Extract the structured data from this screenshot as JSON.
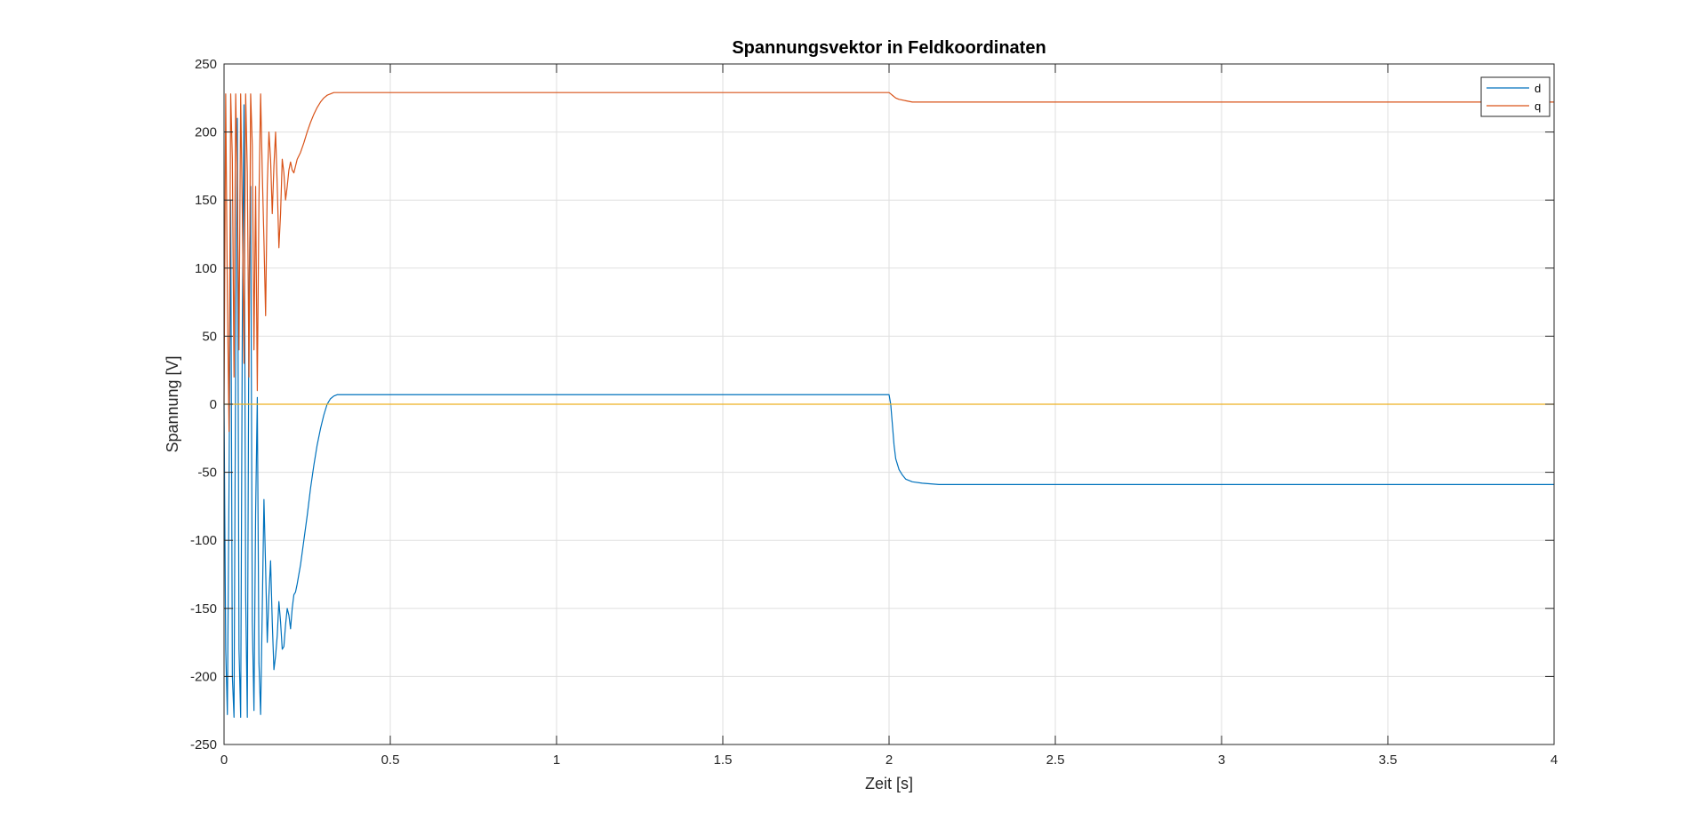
{
  "chart_data": {
    "type": "line",
    "title": "Spannungsvektor in Feldkoordinaten",
    "xlabel": "Zeit [s]",
    "ylabel": "Spannung [V]",
    "xlim": [
      0,
      4
    ],
    "ylim": [
      -250,
      250
    ],
    "xticks": [
      0,
      0.5,
      1,
      1.5,
      2,
      2.5,
      3,
      3.5,
      4
    ],
    "xtick_labels": [
      "0",
      "0.5",
      "1",
      "1.5",
      "2",
      "2.5",
      "3",
      "3.5",
      "4"
    ],
    "yticks": [
      -250,
      -200,
      -150,
      -100,
      -50,
      0,
      50,
      100,
      150,
      200,
      250
    ],
    "ytick_labels": [
      "-250",
      "-200",
      "-150",
      "-100",
      "-50",
      "0",
      "50",
      "100",
      "150",
      "200",
      "250"
    ],
    "grid": true,
    "legend_position": "top-right",
    "series": [
      {
        "name": "d",
        "color": "#0072BD",
        "x": [
          0,
          0.005,
          0.01,
          0.015,
          0.02,
          0.025,
          0.03,
          0.035,
          0.04,
          0.045,
          0.05,
          0.055,
          0.06,
          0.065,
          0.07,
          0.075,
          0.08,
          0.085,
          0.09,
          0.095,
          0.1,
          0.105,
          0.11,
          0.115,
          0.12,
          0.125,
          0.13,
          0.135,
          0.14,
          0.145,
          0.15,
          0.155,
          0.16,
          0.165,
          0.17,
          0.175,
          0.18,
          0.185,
          0.19,
          0.195,
          0.2,
          0.205,
          0.21,
          0.215,
          0.22,
          0.23,
          0.24,
          0.25,
          0.26,
          0.27,
          0.28,
          0.29,
          0.3,
          0.31,
          0.32,
          0.33,
          0.34,
          0.35,
          0.36,
          0.37,
          0.38,
          0.39,
          0.4,
          0.42,
          0.45,
          0.5,
          1.0,
          1.5,
          1.99,
          2.0,
          2.005,
          2.01,
          2.015,
          2.02,
          2.03,
          2.04,
          2.05,
          2.07,
          2.1,
          2.15,
          2.2,
          2.3,
          2.4,
          2.6,
          3.0,
          3.5,
          4.0
        ],
        "y": [
          0,
          -180,
          -228,
          -60,
          150,
          -200,
          -230,
          40,
          210,
          -180,
          -230,
          60,
          220,
          -140,
          -230,
          80,
          160,
          -160,
          -225,
          -80,
          5,
          -190,
          -228,
          -150,
          -70,
          -120,
          -175,
          -140,
          -115,
          -160,
          -195,
          -185,
          -170,
          -145,
          -160,
          -180,
          -178,
          -162,
          -150,
          -155,
          -165,
          -150,
          -140,
          -138,
          -132,
          -118,
          -100,
          -82,
          -62,
          -45,
          -30,
          -18,
          -8,
          0,
          4,
          6,
          7,
          7,
          7,
          7,
          7,
          7,
          7,
          7,
          7,
          7,
          7,
          7,
          7,
          7,
          0,
          -15,
          -30,
          -40,
          -48,
          -52,
          -55,
          -57,
          -58,
          -59,
          -59,
          -59,
          -59,
          -59,
          -59,
          -59,
          -59
        ]
      },
      {
        "name": "q",
        "color": "#D95319",
        "x": [
          0,
          0.005,
          0.01,
          0.015,
          0.02,
          0.025,
          0.03,
          0.035,
          0.04,
          0.045,
          0.05,
          0.055,
          0.06,
          0.065,
          0.07,
          0.075,
          0.08,
          0.085,
          0.09,
          0.095,
          0.1,
          0.105,
          0.11,
          0.115,
          0.12,
          0.125,
          0.13,
          0.135,
          0.14,
          0.145,
          0.15,
          0.155,
          0.16,
          0.165,
          0.17,
          0.175,
          0.18,
          0.185,
          0.19,
          0.195,
          0.2,
          0.205,
          0.21,
          0.215,
          0.22,
          0.23,
          0.24,
          0.25,
          0.26,
          0.27,
          0.28,
          0.29,
          0.3,
          0.31,
          0.32,
          0.33,
          0.34,
          0.35,
          0.36,
          0.37,
          0.38,
          0.4,
          0.5,
          1.0,
          1.5,
          1.99,
          2.0,
          2.005,
          2.01,
          2.02,
          2.03,
          2.05,
          2.07,
          2.1,
          2.15,
          2.2,
          2.3,
          2.5,
          3.0,
          3.5,
          4.0
        ],
        "y": [
          0,
          228,
          80,
          -20,
          228,
          180,
          20,
          228,
          160,
          40,
          228,
          140,
          30,
          228,
          170,
          20,
          228,
          190,
          40,
          160,
          10,
          150,
          228,
          170,
          120,
          65,
          160,
          200,
          180,
          140,
          175,
          200,
          160,
          115,
          140,
          180,
          170,
          150,
          160,
          172,
          178,
          172,
          170,
          175,
          180,
          185,
          192,
          200,
          207,
          213,
          218,
          222,
          225,
          227,
          228,
          229,
          229,
          229,
          229,
          229,
          229,
          229,
          229,
          229,
          229,
          229,
          229,
          228,
          227,
          225,
          224,
          223,
          222,
          222,
          222,
          222,
          222,
          222,
          222,
          222,
          222
        ]
      },
      {
        "name": "",
        "color": "#EDB120",
        "x": [
          0,
          4
        ],
        "y": [
          0,
          0
        ]
      }
    ]
  }
}
